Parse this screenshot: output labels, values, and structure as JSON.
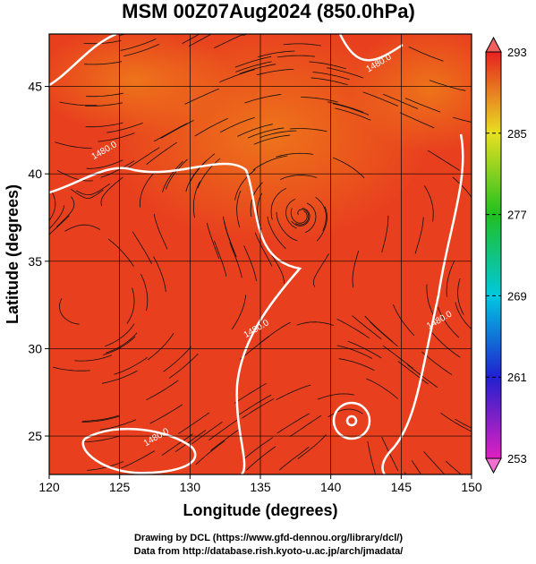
{
  "map": {
    "title": "MSM 00Z07Aug2024 (850.0hPa)",
    "xlabel": "Longitude (degrees)",
    "ylabel": "Latitude  (degrees)",
    "xlim": [
      120,
      150
    ],
    "xticks": [
      120,
      125,
      130,
      135,
      140,
      145,
      150
    ],
    "ylim": [
      22.8,
      48.0
    ],
    "yticks": [
      25,
      30,
      35,
      40,
      45
    ],
    "colorbar": {
      "lim": [
        253,
        293
      ],
      "ticks": [
        253,
        261,
        269,
        277,
        285,
        293
      ]
    },
    "contour_labels": [
      {
        "text": "1480.0",
        "lon": 124.0,
        "lat": 41.2
      },
      {
        "text": "1480.0",
        "lon": 143.5,
        "lat": 46.2
      },
      {
        "text": "1480.0",
        "lon": 147.8,
        "lat": 31.5
      },
      {
        "text": "1480.0",
        "lon": 134.8,
        "lat": 31.0
      },
      {
        "text": "1480.0",
        "lon": 127.7,
        "lat": 24.8
      }
    ],
    "credits": [
      "Drawing by DCL (https://www.gfd-dennou.org/library/dcl/)",
      "Data from http://database.rish.kyoto-u.ac.jp/arch/jmadata/"
    ]
  }
}
